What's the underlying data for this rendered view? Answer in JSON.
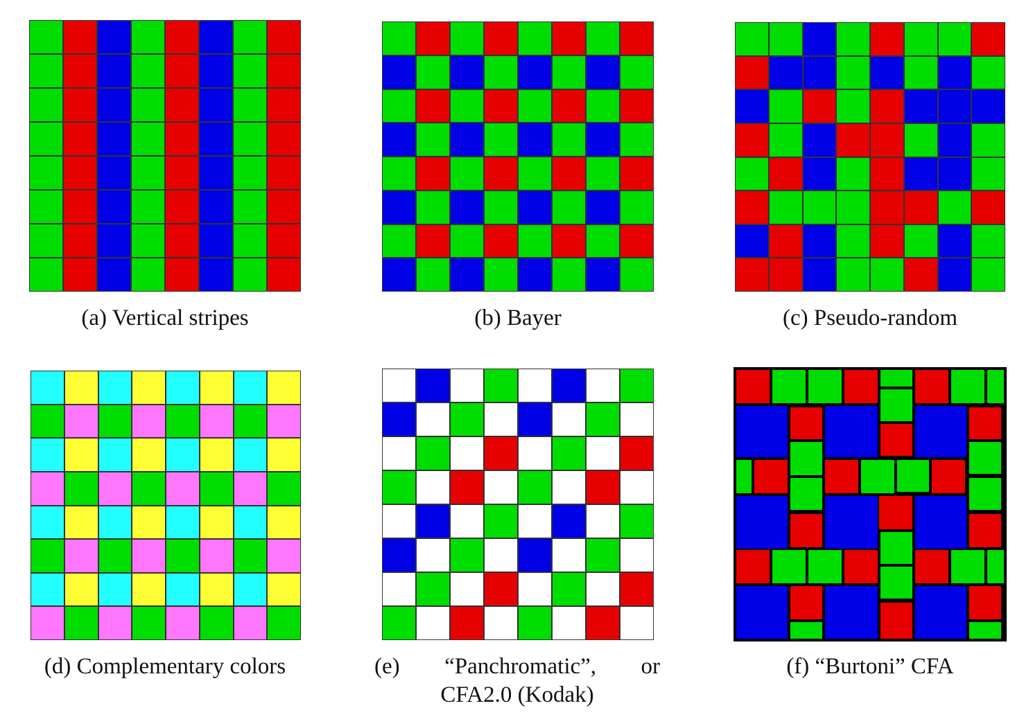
{
  "colors": {
    "R": "#e60000",
    "G": "#00dd00",
    "B": "#0000e6",
    "C": "#22ffff",
    "Y": "#ffff33",
    "M": "#ff77ff",
    "W": "#ffffff"
  },
  "panels": [
    {
      "id": "a",
      "caption": "(a) Vertical stripes",
      "pattern": [
        [
          "G",
          "R",
          "B",
          "G",
          "R",
          "B",
          "G",
          "R"
        ],
        [
          "G",
          "R",
          "B",
          "G",
          "R",
          "B",
          "G",
          "R"
        ],
        [
          "G",
          "R",
          "B",
          "G",
          "R",
          "B",
          "G",
          "R"
        ],
        [
          "G",
          "R",
          "B",
          "G",
          "R",
          "B",
          "G",
          "R"
        ],
        [
          "G",
          "R",
          "B",
          "G",
          "R",
          "B",
          "G",
          "R"
        ],
        [
          "G",
          "R",
          "B",
          "G",
          "R",
          "B",
          "G",
          "R"
        ],
        [
          "G",
          "R",
          "B",
          "G",
          "R",
          "B",
          "G",
          "R"
        ],
        [
          "G",
          "R",
          "B",
          "G",
          "R",
          "B",
          "G",
          "R"
        ]
      ]
    },
    {
      "id": "b",
      "caption": "(b) Bayer",
      "pattern": [
        [
          "G",
          "R",
          "G",
          "R",
          "G",
          "R",
          "G",
          "R"
        ],
        [
          "B",
          "G",
          "B",
          "G",
          "B",
          "G",
          "B",
          "G"
        ],
        [
          "G",
          "R",
          "G",
          "R",
          "G",
          "R",
          "G",
          "R"
        ],
        [
          "B",
          "G",
          "B",
          "G",
          "B",
          "G",
          "B",
          "G"
        ],
        [
          "G",
          "R",
          "G",
          "R",
          "G",
          "R",
          "G",
          "R"
        ],
        [
          "B",
          "G",
          "B",
          "G",
          "B",
          "G",
          "B",
          "G"
        ],
        [
          "G",
          "R",
          "G",
          "R",
          "G",
          "R",
          "G",
          "R"
        ],
        [
          "B",
          "G",
          "B",
          "G",
          "B",
          "G",
          "B",
          "G"
        ]
      ]
    },
    {
      "id": "c",
      "caption": "(c) Pseudo-random",
      "pattern": [
        [
          "G",
          "G",
          "B",
          "G",
          "R",
          "G",
          "G",
          "R"
        ],
        [
          "R",
          "B",
          "B",
          "G",
          "B",
          "G",
          "B",
          "G"
        ],
        [
          "B",
          "G",
          "R",
          "G",
          "R",
          "B",
          "B",
          "B"
        ],
        [
          "R",
          "G",
          "B",
          "R",
          "R",
          "G",
          "B",
          "G"
        ],
        [
          "G",
          "R",
          "B",
          "G",
          "R",
          "B",
          "B",
          "G"
        ],
        [
          "R",
          "G",
          "G",
          "G",
          "R",
          "R",
          "G",
          "R"
        ],
        [
          "B",
          "R",
          "B",
          "G",
          "R",
          "G",
          "B",
          "G"
        ],
        [
          "R",
          "R",
          "B",
          "G",
          "G",
          "R",
          "B",
          "G"
        ]
      ]
    },
    {
      "id": "d",
      "caption": "(d) Complementary colors",
      "pattern": [
        [
          "C",
          "Y",
          "C",
          "Y",
          "C",
          "Y",
          "C",
          "Y"
        ],
        [
          "G",
          "M",
          "G",
          "M",
          "G",
          "M",
          "G",
          "M"
        ],
        [
          "C",
          "Y",
          "C",
          "Y",
          "C",
          "Y",
          "C",
          "Y"
        ],
        [
          "M",
          "G",
          "M",
          "G",
          "M",
          "G",
          "M",
          "G"
        ],
        [
          "C",
          "Y",
          "C",
          "Y",
          "C",
          "Y",
          "C",
          "Y"
        ],
        [
          "G",
          "M",
          "G",
          "M",
          "G",
          "M",
          "G",
          "M"
        ],
        [
          "C",
          "Y",
          "C",
          "Y",
          "C",
          "Y",
          "C",
          "Y"
        ],
        [
          "M",
          "G",
          "M",
          "G",
          "M",
          "G",
          "M",
          "G"
        ]
      ]
    },
    {
      "id": "e",
      "caption_line1": [
        "(e)",
        "“Panchromatic”,",
        "or"
      ],
      "caption_line2": "CFA2.0 (Kodak)",
      "pattern": [
        [
          "W",
          "B",
          "W",
          "G",
          "W",
          "B",
          "W",
          "G"
        ],
        [
          "B",
          "W",
          "G",
          "W",
          "B",
          "W",
          "G",
          "W"
        ],
        [
          "W",
          "G",
          "W",
          "R",
          "W",
          "G",
          "W",
          "R"
        ],
        [
          "G",
          "W",
          "R",
          "W",
          "G",
          "W",
          "R",
          "W"
        ],
        [
          "W",
          "B",
          "W",
          "G",
          "W",
          "B",
          "W",
          "G"
        ],
        [
          "B",
          "W",
          "G",
          "W",
          "B",
          "W",
          "G",
          "W"
        ],
        [
          "W",
          "G",
          "W",
          "R",
          "W",
          "G",
          "W",
          "R"
        ],
        [
          "G",
          "W",
          "R",
          "W",
          "G",
          "W",
          "R",
          "W"
        ]
      ]
    },
    {
      "id": "f",
      "caption": "(f) “Burtoni” CFA"
    }
  ]
}
